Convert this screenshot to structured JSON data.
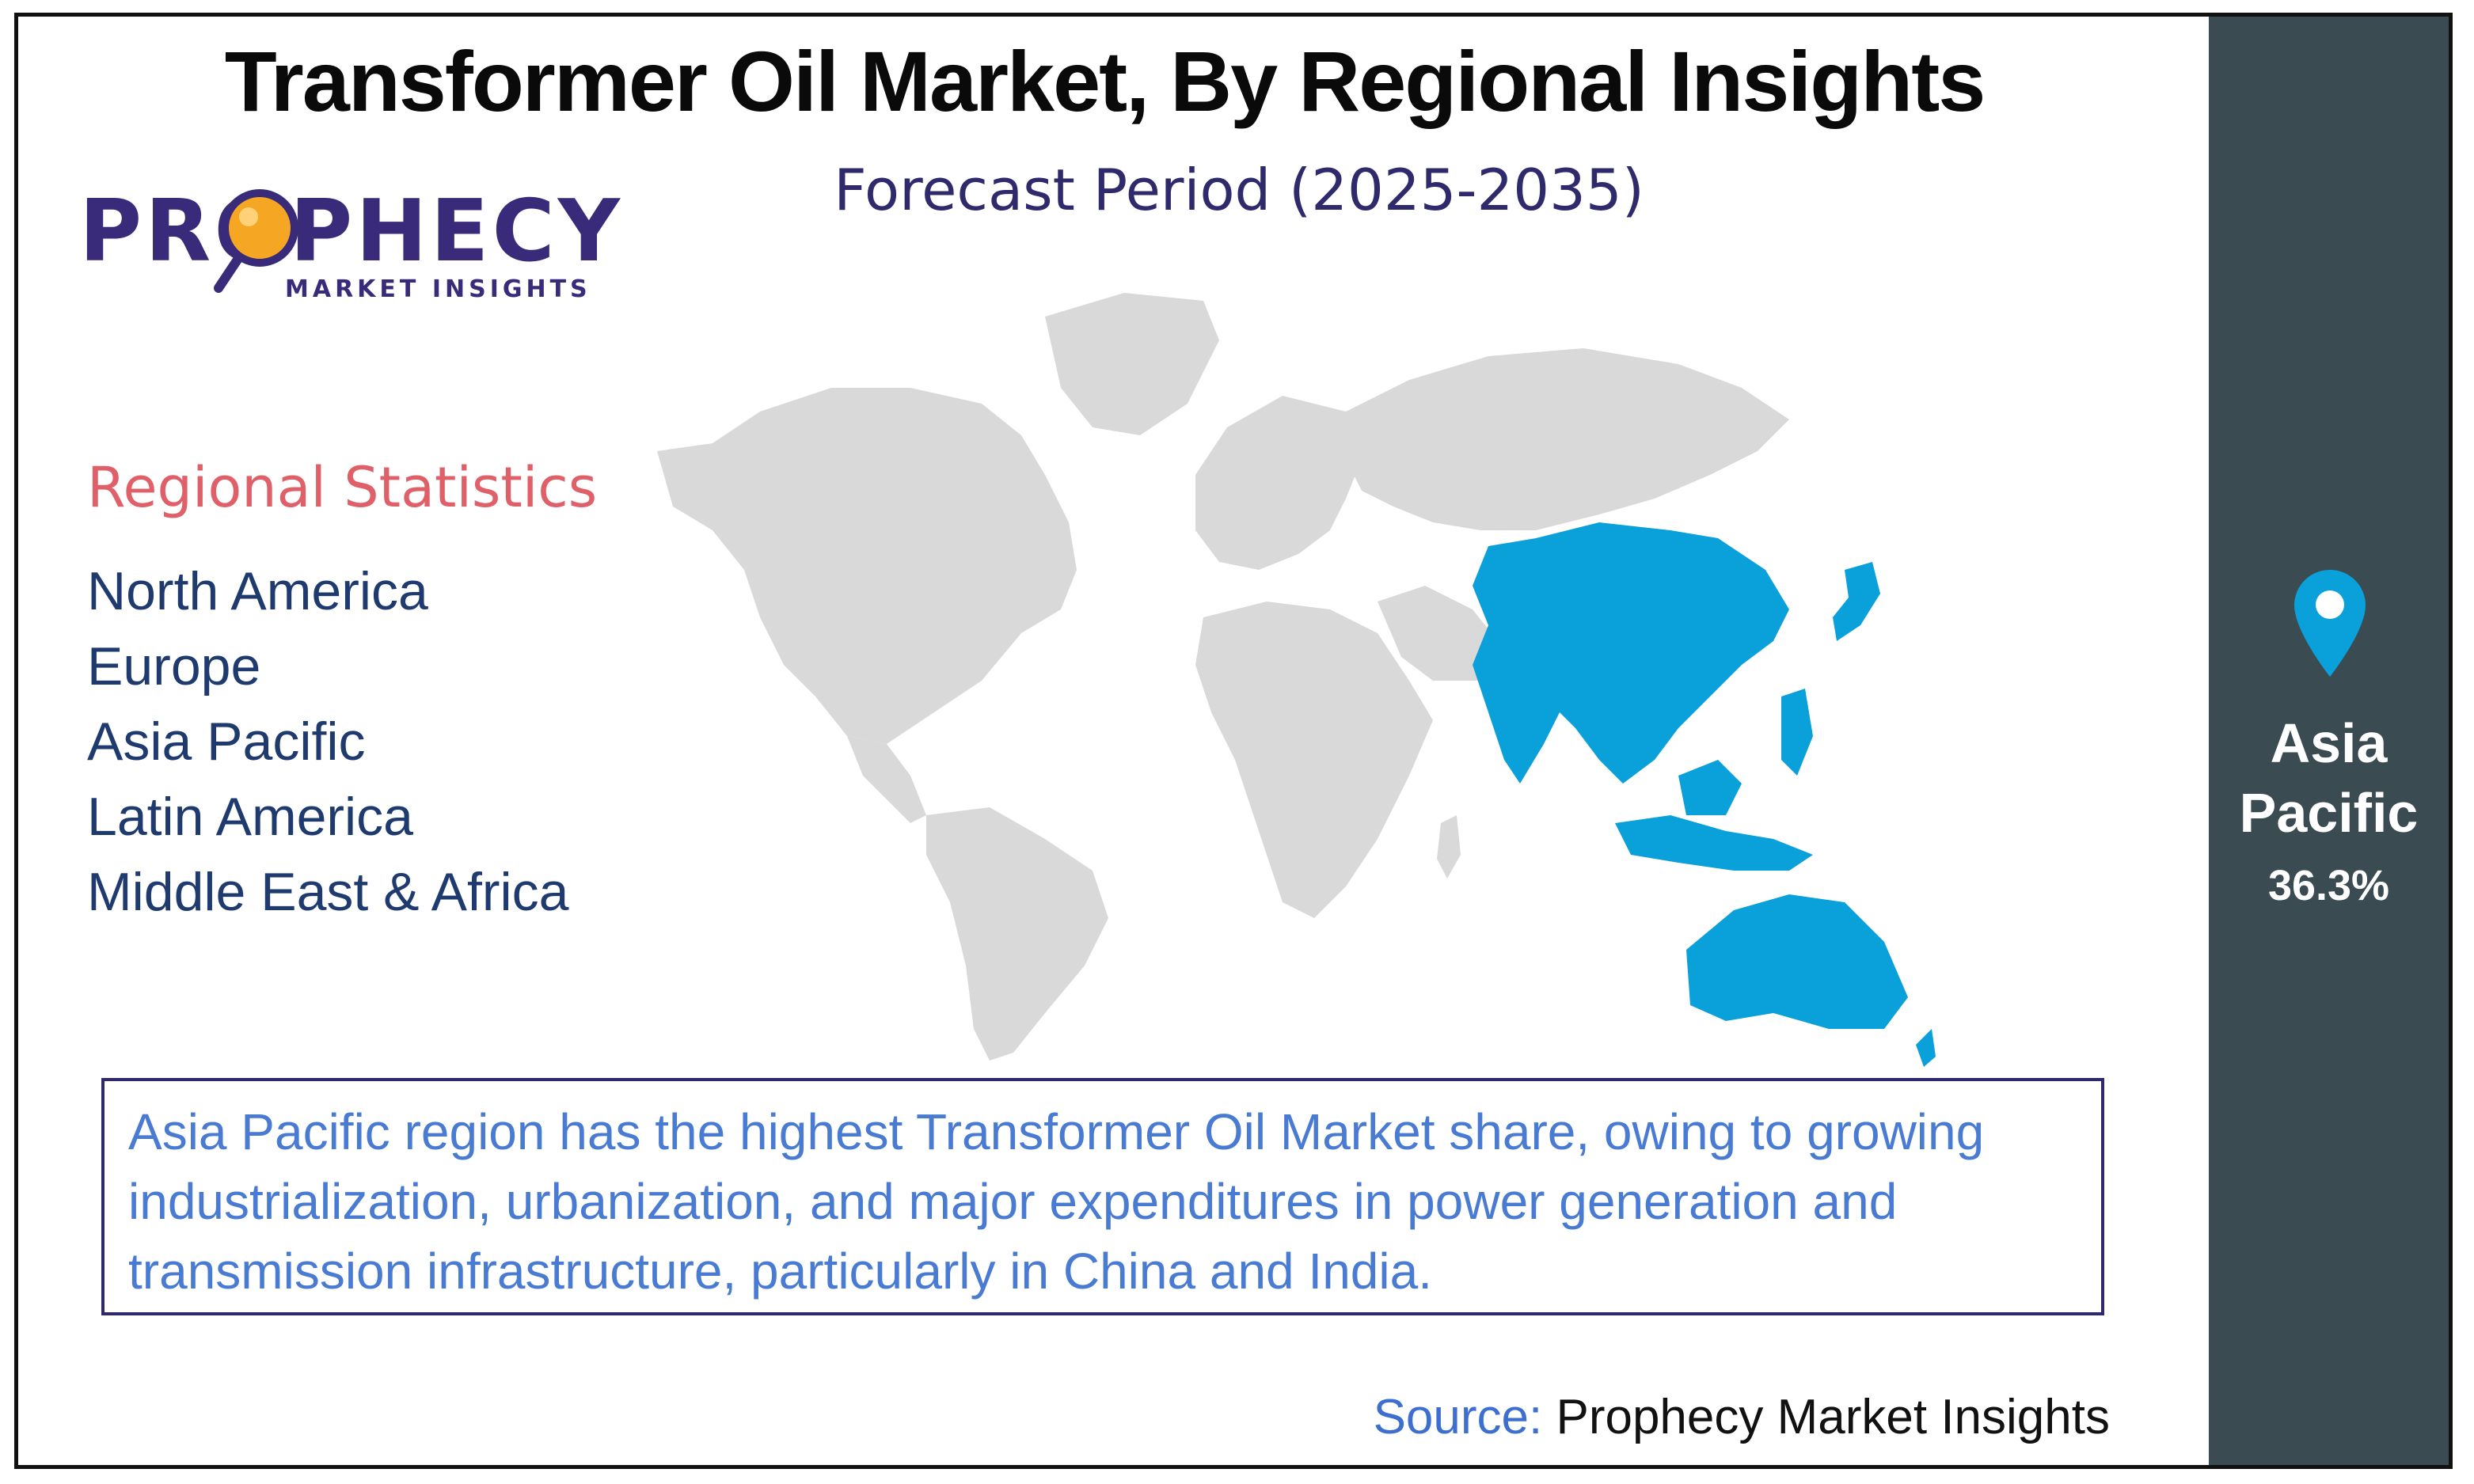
{
  "header": {
    "title": "Transformer Oil Market, By Regional Insights",
    "subtitle": "Forecast Period (2025-2035)"
  },
  "logo": {
    "word": "PROPHECY",
    "sub": "MARKET INSIGHTS",
    "icon": "magnifier-icon"
  },
  "stats": {
    "heading": "Regional Statistics",
    "regions": [
      "North America",
      "Europe",
      "Asia Pacific",
      "Latin America",
      "Middle East & Africa"
    ]
  },
  "map": {
    "highlighted_region": "Asia Pacific",
    "highlight_color": "#0aa0d9",
    "base_color": "#d9d9d9"
  },
  "note": {
    "text": "Asia Pacific region has the highest Transformer Oil Market share, owing to growing industrialization, urbanization, and major expenditures in power generation and transmission infrastructure, particularly in China and India."
  },
  "source": {
    "label": "Source:",
    "value": "Prophecy Market Insights"
  },
  "sidebar": {
    "icon": "location-pin-icon",
    "region": "Asia Pacific",
    "share": "36.3%",
    "background": "#3a4b52",
    "pin_color": "#0aa0d9"
  }
}
